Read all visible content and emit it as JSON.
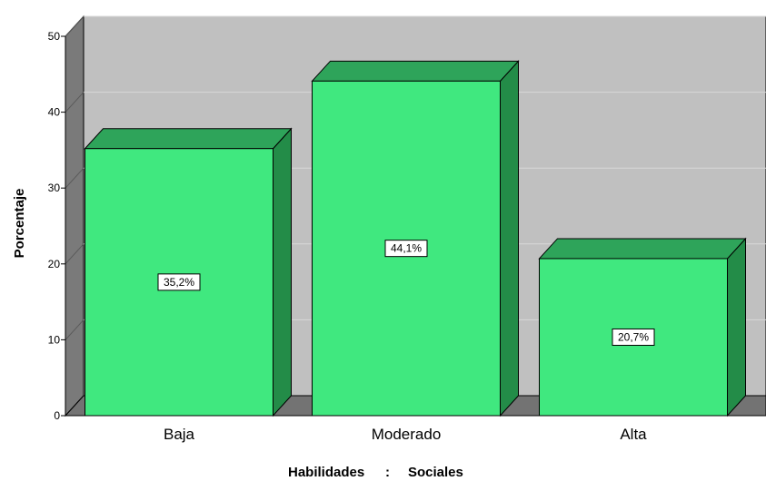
{
  "chart_data": {
    "type": "bar",
    "title": "",
    "categories": [
      "Baja",
      "Moderado",
      "Alta"
    ],
    "values": [
      35.2,
      44.1,
      20.7
    ],
    "data_labels": [
      "35,2%",
      "44,1%",
      "20,7%"
    ],
    "xlabel_parts": [
      "Habilidades",
      "Sociales"
    ],
    "ylabel": "Porcentaje",
    "ylim": [
      0,
      50
    ],
    "yticks": [
      "0",
      "10",
      "20",
      "30",
      "40",
      "50"
    ],
    "grid": true,
    "style": "3d",
    "colors": {
      "bar_front": "#40e87f",
      "bar_top": "#2ea45a",
      "bar_side": "#238c48",
      "wall": "#c0c0c0",
      "floor": "#737373",
      "left_wall": "#7a7a7a",
      "grid": "#d8d8d8"
    }
  }
}
